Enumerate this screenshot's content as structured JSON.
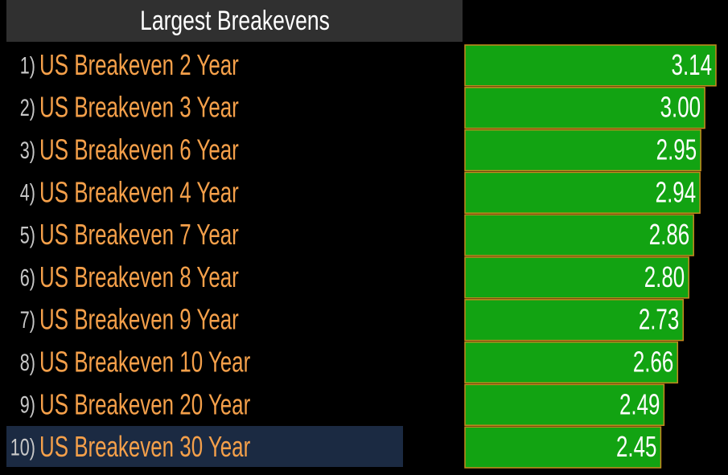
{
  "chart_data": {
    "type": "bar",
    "orientation": "horizontal",
    "title": "Largest Breakevens",
    "ranks": [
      "1)",
      "2)",
      "3)",
      "4)",
      "5)",
      "6)",
      "7)",
      "8)",
      "9)",
      "10)"
    ],
    "categories": [
      "US Breakeven 2 Year",
      "US Breakeven 3 Year",
      "US Breakeven 6 Year",
      "US Breakeven 4 Year",
      "US Breakeven 7 Year",
      "US Breakeven 8 Year",
      "US Breakeven 9 Year",
      "US Breakeven 10 Year",
      "US Breakeven 20 Year",
      "US Breakeven 30 Year"
    ],
    "values": [
      3.14,
      3.0,
      2.95,
      2.94,
      2.86,
      2.8,
      2.73,
      2.66,
      2.49,
      2.45
    ],
    "value_labels": [
      "3.14",
      "3.00",
      "2.95",
      "2.94",
      "2.86",
      "2.80",
      "2.73",
      "2.66",
      "2.49",
      "2.45"
    ],
    "color": "#12a312",
    "border_color": "#c88a1e"
  }
}
